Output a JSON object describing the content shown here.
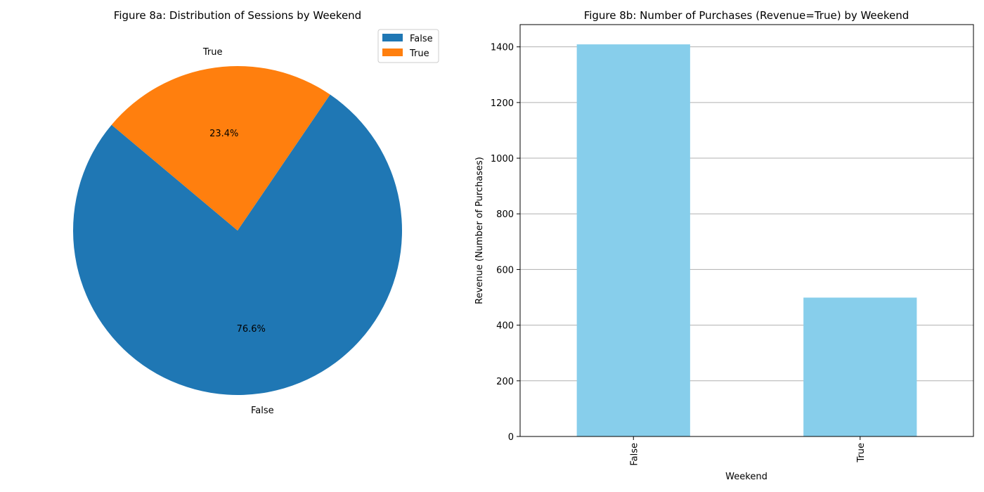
{
  "chart_data": [
    {
      "type": "pie",
      "title": "Figure 8a: Distribution of Sessions by Weekend",
      "slices": [
        {
          "label": "False",
          "value": 76.6,
          "pct_label": "76.6%",
          "color": "#1f77b4"
        },
        {
          "label": "True",
          "value": 23.4,
          "pct_label": "23.4%",
          "color": "#ff7f0e"
        }
      ],
      "legend": {
        "position": "top-right",
        "entries": [
          "False",
          "True"
        ]
      }
    },
    {
      "type": "bar",
      "title": "Figure 8b: Number of Purchases (Revenue=True) by Weekend",
      "categories": [
        "False",
        "True"
      ],
      "values": [
        1409,
        499
      ],
      "xlabel": "Weekend",
      "ylabel": "Revenue (Number of Purchases)",
      "ylim": [
        0,
        1480
      ],
      "yticks": [
        0,
        200,
        400,
        600,
        800,
        1000,
        1200,
        1400
      ],
      "grid": "y",
      "bar_color": "#87ceeb"
    }
  ]
}
